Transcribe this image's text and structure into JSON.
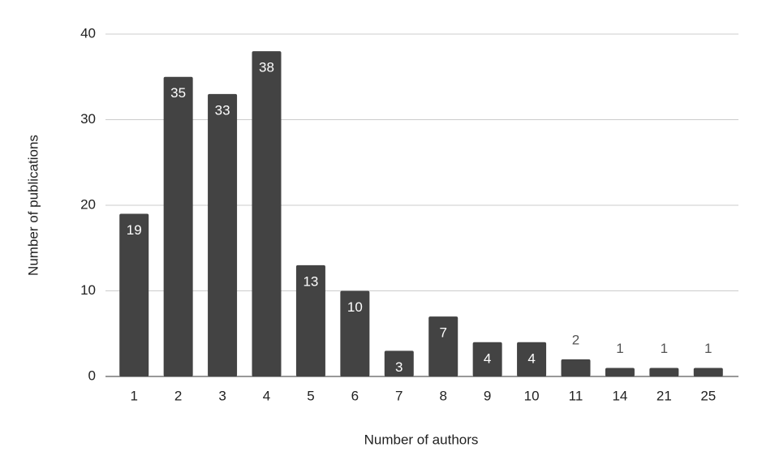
{
  "chart_data": {
    "type": "bar",
    "categories": [
      "1",
      "2",
      "3",
      "4",
      "5",
      "6",
      "7",
      "8",
      "9",
      "10",
      "11",
      "14",
      "21",
      "25"
    ],
    "values": [
      19,
      35,
      33,
      38,
      13,
      10,
      3,
      7,
      4,
      4,
      2,
      1,
      1,
      1
    ],
    "color": "#434343",
    "xlabel": "Number of authors",
    "ylabel": "Number of publications",
    "ylim": [
      0,
      40
    ],
    "yticks": [
      0,
      10,
      20,
      30,
      40
    ],
    "grid": true
  }
}
